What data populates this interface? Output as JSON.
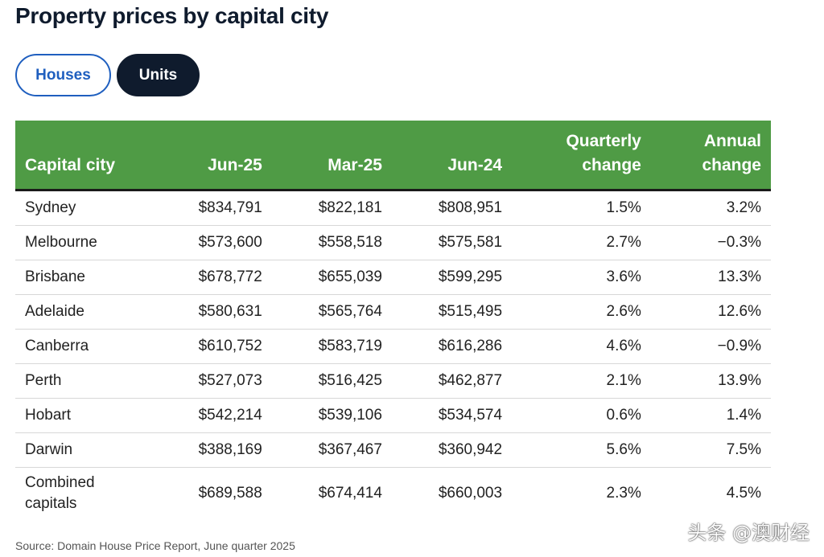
{
  "page": {
    "title": "Property prices by capital city"
  },
  "toggles": {
    "houses_label": "Houses",
    "units_label": "Units",
    "selected": "Units"
  },
  "table": {
    "headers": {
      "city": "Capital city",
      "jun25": "Jun-25",
      "mar25": "Mar-25",
      "jun24": "Jun-24",
      "quarterly_line1": "Quarterly",
      "quarterly_line2": "change",
      "annual_line1": "Annual",
      "annual_line2": "change"
    },
    "rows": [
      {
        "city": "Sydney",
        "jun25": "$834,791",
        "mar25": "$822,181",
        "jun24": "$808,951",
        "quarterly": "1.5%",
        "annual": "3.2%"
      },
      {
        "city": "Melbourne",
        "jun25": "$573,600",
        "mar25": "$558,518",
        "jun24": "$575,581",
        "quarterly": "2.7%",
        "annual": "−0.3%"
      },
      {
        "city": "Brisbane",
        "jun25": "$678,772",
        "mar25": "$655,039",
        "jun24": "$599,295",
        "quarterly": "3.6%",
        "annual": "13.3%"
      },
      {
        "city": "Adelaide",
        "jun25": "$580,631",
        "mar25": "$565,764",
        "jun24": "$515,495",
        "quarterly": "2.6%",
        "annual": "12.6%"
      },
      {
        "city": "Canberra",
        "jun25": "$610,752",
        "mar25": "$583,719",
        "jun24": "$616,286",
        "quarterly": "4.6%",
        "annual": "−0.9%"
      },
      {
        "city": "Perth",
        "jun25": "$527,073",
        "mar25": "$516,425",
        "jun24": "$462,877",
        "quarterly": "2.1%",
        "annual": "13.9%"
      },
      {
        "city": "Hobart",
        "jun25": "$542,214",
        "mar25": "$539,106",
        "jun24": "$534,574",
        "quarterly": "0.6%",
        "annual": "1.4%"
      },
      {
        "city": "Darwin",
        "jun25": "$388,169",
        "mar25": "$367,467",
        "jun24": "$360,942",
        "quarterly": "5.6%",
        "annual": "7.5%"
      },
      {
        "city_line1": "Combined",
        "city_line2": "capitals",
        "jun25": "$689,588",
        "mar25": "$674,414",
        "jun24": "$660,003",
        "quarterly": "2.3%",
        "annual": "4.5%"
      }
    ]
  },
  "footer": {
    "source": "Source: Domain House Price Report, June quarter 2025",
    "watermark": "头条 @澳财经"
  },
  "colors": {
    "header_green": "#4f9b45",
    "navy": "#0f1b2d",
    "link_blue": "#1f5fbf"
  }
}
